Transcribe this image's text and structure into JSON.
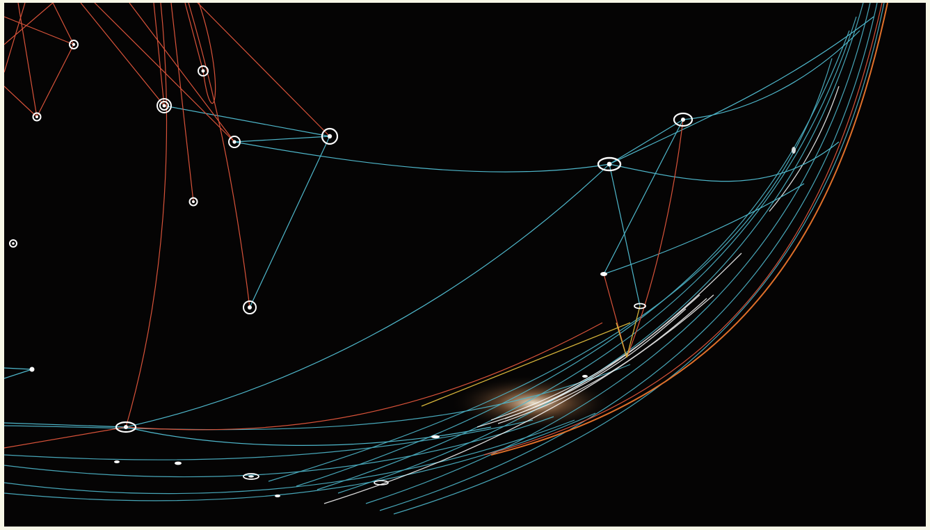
{
  "scene": {
    "description_tag": "network-globe",
    "colors": {
      "background": "#050404",
      "frame": "#f7f7e6",
      "line_cyan": "#4fb8cc",
      "line_red": "#d9533a",
      "line_orange": "#e0702a",
      "line_yellow": "#d6b43a",
      "node": "#ffffff",
      "glow": "#ffe7c2"
    }
  }
}
